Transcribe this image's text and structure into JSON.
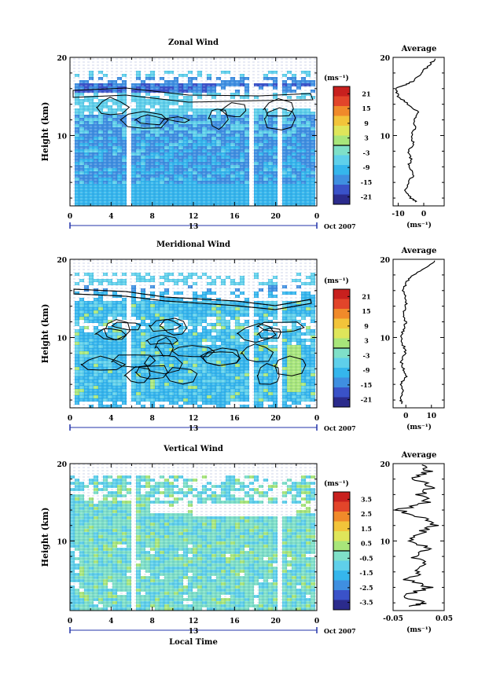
{
  "chart_data": [
    {
      "type": "heatmap",
      "title": "Zonal Wind",
      "ylabel": "Height (km)",
      "xlabel": "",
      "ylim": [
        1,
        20
      ],
      "xlim": [
        0,
        24
      ],
      "y_ticks": [
        "10",
        "20"
      ],
      "x_ticks": [
        "0",
        "4",
        "8",
        "12",
        "16",
        "20",
        "0"
      ],
      "date_label": "13",
      "month_label": "Oct 2007",
      "colorbar": {
        "unit": "(ms⁻¹)",
        "ticks": [
          "21",
          "15",
          "9",
          "3",
          "-3",
          "-9",
          "-15",
          "-21"
        ],
        "range": [
          -24,
          24
        ],
        "zero_line": 0
      },
      "profile": {
        "title": "Average",
        "xlabel": "(ms⁻¹)",
        "x_ticks": [
          "-10",
          "0"
        ],
        "xlim": [
          -12,
          8
        ],
        "y_ticks": [
          "10",
          "20"
        ],
        "heights": [
          1.5,
          2,
          3,
          4,
          5,
          6,
          7,
          8,
          9,
          10,
          11,
          12,
          13,
          14,
          15,
          16,
          16.5,
          17,
          18,
          19,
          20
        ],
        "values": [
          -3,
          -5,
          -7,
          -6,
          -4,
          -6,
          -5,
          -6,
          -4,
          -5,
          -3,
          -4,
          -2,
          -6,
          -10,
          -11,
          -7,
          -4,
          -1,
          2,
          5
        ]
      }
    },
    {
      "type": "heatmap",
      "title": "Meridional Wind",
      "ylabel": "Height (km)",
      "xlabel": "",
      "ylim": [
        1,
        20
      ],
      "xlim": [
        0,
        24
      ],
      "y_ticks": [
        "10",
        "20"
      ],
      "x_ticks": [
        "0",
        "4",
        "8",
        "12",
        "16",
        "20",
        "0"
      ],
      "date_label": "13",
      "month_label": "Oct 2007",
      "colorbar": {
        "unit": "(ms⁻¹)",
        "ticks": [
          "21",
          "15",
          "9",
          "3",
          "-3",
          "-9",
          "-15",
          "-21"
        ],
        "range": [
          -24,
          24
        ],
        "zero_line": 0
      },
      "profile": {
        "title": "Average",
        "xlabel": "(ms⁻¹)",
        "x_ticks": [
          "0",
          "10"
        ],
        "xlim": [
          -5,
          15
        ],
        "y_ticks": [
          "10",
          "20"
        ],
        "heights": [
          1.5,
          2,
          3,
          4,
          5,
          6,
          7,
          8,
          9,
          10,
          11,
          12,
          13,
          14,
          15,
          16,
          17,
          18,
          19,
          20
        ],
        "values": [
          -1,
          -2,
          -1,
          -2,
          0,
          -1,
          -2,
          0,
          -1,
          -2,
          -1,
          0,
          -1,
          0,
          0,
          -1,
          0,
          3,
          8,
          12
        ]
      }
    },
    {
      "type": "heatmap",
      "title": "Vertical Wind",
      "ylabel": "Height (km)",
      "xlabel": "Local Time",
      "ylim": [
        1,
        20
      ],
      "xlim": [
        0,
        24
      ],
      "y_ticks": [
        "10",
        "20"
      ],
      "x_ticks": [
        "0",
        "4",
        "8",
        "12",
        "16",
        "20",
        "0"
      ],
      "date_label": "13",
      "month_label": "Oct 2007",
      "colorbar": {
        "unit": "(ms⁻¹)",
        "ticks": [
          "3.5",
          "2.5",
          "1.5",
          "0.5",
          "-0.5",
          "-1.5",
          "-2.5",
          "-3.5"
        ],
        "range": [
          -4,
          4
        ],
        "zero_line": 0
      },
      "profile": {
        "title": "Average",
        "xlabel": "(ms⁻¹)",
        "x_ticks": [
          "-0.05",
          "0.05"
        ],
        "xlim": [
          -0.05,
          0.05
        ],
        "y_ticks": [
          "10",
          "20"
        ],
        "heights": [
          1.5,
          2,
          3,
          4,
          5,
          6,
          7,
          8,
          9,
          10,
          11,
          12,
          13,
          14,
          15,
          16,
          17,
          18,
          19,
          20
        ],
        "values": [
          -0.02,
          0.01,
          -0.03,
          0.02,
          -0.02,
          0.0,
          0.01,
          -0.01,
          0.02,
          -0.01,
          0.0,
          0.03,
          0.01,
          -0.04,
          0.02,
          0.0,
          0.03,
          -0.01,
          0.02,
          0.0
        ]
      }
    }
  ],
  "colors": {
    "colormap": [
      "#2b2b8c",
      "#3a52c8",
      "#3f8fe0",
      "#35b6ec",
      "#5fd0ea",
      "#7fe0c8",
      "#a8e67a",
      "#dfe65a",
      "#f2c43a",
      "#f08a2a",
      "#e2452a",
      "#c8201e"
    ],
    "line": "#000000",
    "timebar": "#2233aa"
  }
}
